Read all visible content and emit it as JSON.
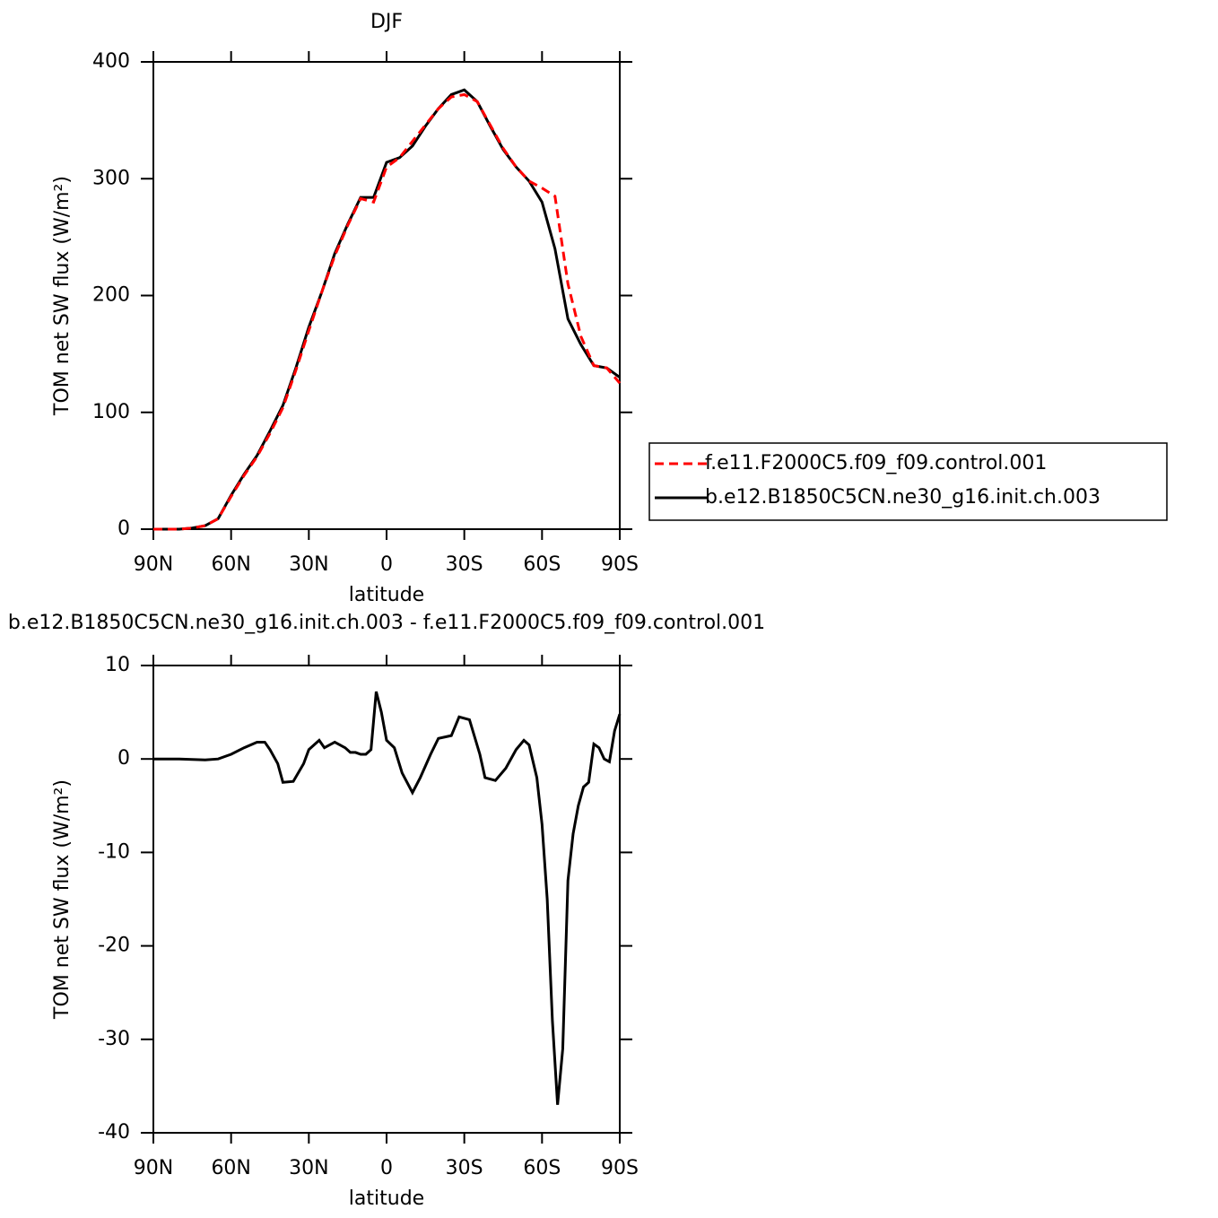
{
  "chart_data": [
    {
      "type": "line",
      "title": "DJF",
      "x_label": "latitude",
      "y_label": "TOM net SW flux (W/m²)",
      "x": [
        90,
        85,
        80,
        75,
        70,
        65,
        60,
        55,
        50,
        45,
        40,
        35,
        30,
        25,
        20,
        15,
        10,
        5,
        0,
        -5,
        -10,
        -15,
        -20,
        -25,
        -30,
        -35,
        -40,
        -45,
        -50,
        -55,
        -60,
        -65,
        -70,
        -75,
        -80,
        -85,
        -90
      ],
      "series": [
        {
          "name": "f.e11.F2000C5.f09_f09.control.001",
          "color": "#ff0000",
          "dashed": true,
          "values": [
            0,
            0,
            0,
            1,
            3,
            9,
            28,
            46,
            62,
            82,
            104,
            136,
            170,
            203,
            234,
            260,
            283,
            280,
            310,
            318,
            332,
            346,
            360,
            370,
            372,
            366,
            346,
            326,
            310,
            298,
            292,
            285,
            210,
            165,
            140,
            138,
            125
          ]
        },
        {
          "name": "b.e12.B1850C5CN.ne30_g16.init.ch.003",
          "color": "#000000",
          "dashed": false,
          "values": [
            0,
            0,
            0,
            1,
            3,
            9,
            29,
            47,
            63,
            84,
            106,
            138,
            173,
            203,
            236,
            261,
            284,
            284,
            314,
            318,
            328,
            345,
            360,
            372,
            376,
            366,
            345,
            325,
            310,
            298,
            280,
            240,
            180,
            158,
            140,
            138,
            130
          ]
        }
      ],
      "xlim": [
        90,
        -90
      ],
      "xticks": [
        {
          "value": 90,
          "label": "90N"
        },
        {
          "value": 60,
          "label": "60N"
        },
        {
          "value": 30,
          "label": "30N"
        },
        0,
        {
          "value": -30,
          "label": "30S"
        },
        {
          "value": -60,
          "label": "60S"
        },
        {
          "value": -90,
          "label": "90S"
        }
      ],
      "ylim": [
        0,
        400
      ],
      "yticks": [
        0,
        100,
        200,
        300,
        400
      ],
      "legend": "right"
    },
    {
      "type": "line",
      "title": "b.e12.B1850C5CN.ne30_g16.init.ch.003 - f.e11.F2000C5.f09_f09.control.001",
      "x_label": "latitude",
      "y_label": "TOM net SW flux (W/m²)",
      "x": [
        90,
        80,
        70,
        65,
        60,
        55,
        50,
        47,
        45,
        42,
        40,
        36,
        32,
        30,
        26,
        24,
        20,
        16,
        14,
        12,
        10,
        8,
        6,
        4,
        2,
        0,
        -3,
        -6,
        -10,
        -13,
        -17,
        -20,
        -25,
        -28,
        -32,
        -36,
        -38,
        -42,
        -46,
        -50,
        -53,
        -55,
        -58,
        -60,
        -62,
        -64,
        -66,
        -68,
        -70,
        -72,
        -74,
        -76,
        -78,
        -80,
        -82,
        -84,
        -86,
        -88,
        -90
      ],
      "values": [
        0,
        0,
        -0.1,
        0,
        0.5,
        1.2,
        1.8,
        1.8,
        1,
        -0.5,
        -2.5,
        -2.4,
        -0.5,
        1,
        2,
        1.2,
        1.8,
        1.2,
        0.7,
        0.7,
        0.5,
        0.5,
        1,
        7.2,
        5,
        2,
        1.2,
        -1.5,
        -3.6,
        -2,
        0.5,
        2.2,
        2.5,
        4.5,
        4.2,
        0.5,
        -2,
        -2.3,
        -1,
        1,
        2,
        1.5,
        -2,
        -7,
        -15,
        -28,
        -37,
        -31,
        -13,
        -8,
        -5,
        -3,
        -2.5,
        1.6,
        1.2,
        0,
        -0.3,
        3,
        4.8
      ],
      "color": "#000000",
      "xlim": [
        90,
        -90
      ],
      "xticks": [
        {
          "value": 90,
          "label": "90N"
        },
        {
          "value": 60,
          "label": "60N"
        },
        {
          "value": 30,
          "label": "30N"
        },
        0,
        {
          "value": -30,
          "label": "30S"
        },
        {
          "value": -60,
          "label": "60S"
        },
        {
          "value": -90,
          "label": "90S"
        }
      ],
      "ylim": [
        -40,
        10
      ],
      "yticks": [
        -40,
        -30,
        -20,
        -10,
        0,
        10
      ]
    }
  ]
}
